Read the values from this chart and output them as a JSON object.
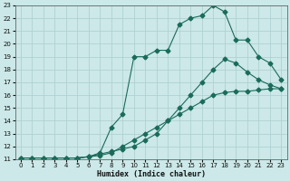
{
  "xlabel": "Humidex (Indice chaleur)",
  "bg_color": "#cce8e8",
  "line_color": "#1a6b5a",
  "grid_color": "#aacece",
  "xlim": [
    -0.5,
    23.5
  ],
  "ylim": [
    11,
    23
  ],
  "xticks": [
    0,
    1,
    2,
    3,
    4,
    5,
    6,
    7,
    8,
    9,
    10,
    11,
    12,
    13,
    14,
    15,
    16,
    17,
    18,
    19,
    20,
    21,
    22,
    23
  ],
  "yticks": [
    11,
    12,
    13,
    14,
    15,
    16,
    17,
    18,
    19,
    20,
    21,
    22,
    23
  ],
  "line1_x": [
    0,
    1,
    2,
    3,
    4,
    5,
    6,
    7,
    8,
    9,
    10,
    11,
    12,
    13,
    14,
    15,
    16,
    17,
    18,
    19,
    20,
    21,
    22,
    23
  ],
  "line1_y": [
    11.1,
    11.1,
    11.1,
    11.1,
    11.1,
    11.1,
    11.2,
    11.3,
    11.5,
    12.0,
    12.5,
    13.0,
    13.5,
    14.0,
    14.5,
    15.0,
    15.5,
    16.0,
    16.2,
    16.3,
    16.3,
    16.4,
    16.5,
    16.5
  ],
  "line2_x": [
    0,
    1,
    2,
    3,
    4,
    5,
    6,
    7,
    8,
    9,
    10,
    11,
    12,
    13,
    14,
    15,
    16,
    17,
    18,
    19,
    20,
    21,
    22,
    23
  ],
  "line2_y": [
    11.1,
    11.1,
    11.1,
    11.1,
    11.1,
    11.1,
    11.2,
    11.4,
    11.6,
    11.8,
    12.0,
    12.5,
    13.0,
    14.0,
    15.0,
    16.0,
    17.0,
    18.0,
    18.8,
    18.5,
    17.8,
    17.2,
    16.8,
    16.5
  ],
  "line3_x": [
    0,
    1,
    2,
    3,
    4,
    5,
    6,
    7,
    8,
    9,
    10,
    11,
    12,
    13,
    14,
    15,
    16,
    17,
    18,
    19,
    20,
    21,
    22,
    23
  ],
  "line3_y": [
    11.1,
    11.1,
    11.1,
    11.1,
    11.1,
    11.1,
    11.2,
    11.5,
    13.5,
    14.5,
    19.0,
    19.0,
    19.5,
    19.5,
    21.5,
    22.0,
    22.2,
    23.0,
    22.5,
    20.3,
    20.3,
    19.0,
    18.5,
    17.2
  ]
}
